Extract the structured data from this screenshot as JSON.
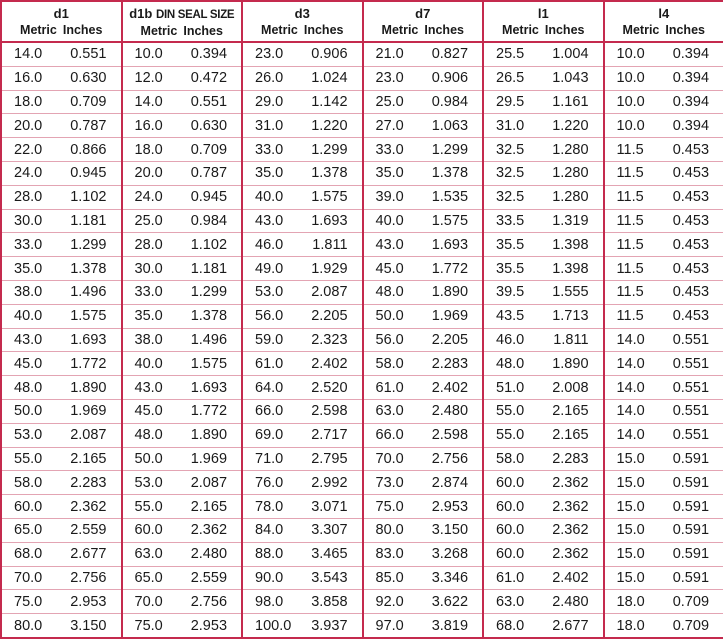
{
  "table": {
    "columns": [
      {
        "label": "d1",
        "note": "",
        "metric": "Metric",
        "inches": "Inches"
      },
      {
        "label": "d1b",
        "note": "DIN SEAL SIZE",
        "metric": "Metric",
        "inches": "Inches"
      },
      {
        "label": "d3",
        "note": "",
        "metric": "Metric",
        "inches": "Inches"
      },
      {
        "label": "d7",
        "note": "",
        "metric": "Metric",
        "inches": "Inches"
      },
      {
        "label": "l1",
        "note": "",
        "metric": "Metric",
        "inches": "Inches"
      },
      {
        "label": "l4",
        "note": "",
        "metric": "Metric",
        "inches": "Inches"
      }
    ],
    "rows": [
      [
        "14.0",
        "0.551",
        "10.0",
        "0.394",
        "23.0",
        "0.906",
        "21.0",
        "0.827",
        "25.5",
        "1.004",
        "10.0",
        "0.394"
      ],
      [
        "16.0",
        "0.630",
        "12.0",
        "0.472",
        "26.0",
        "1.024",
        "23.0",
        "0.906",
        "26.5",
        "1.043",
        "10.0",
        "0.394"
      ],
      [
        "18.0",
        "0.709",
        "14.0",
        "0.551",
        "29.0",
        "1.142",
        "25.0",
        "0.984",
        "29.5",
        "1.161",
        "10.0",
        "0.394"
      ],
      [
        "20.0",
        "0.787",
        "16.0",
        "0.630",
        "31.0",
        "1.220",
        "27.0",
        "1.063",
        "31.0",
        "1.220",
        "10.0",
        "0.394"
      ],
      [
        "22.0",
        "0.866",
        "18.0",
        "0.709",
        "33.0",
        "1.299",
        "33.0",
        "1.299",
        "32.5",
        "1.280",
        "11.5",
        "0.453"
      ],
      [
        "24.0",
        "0.945",
        "20.0",
        "0.787",
        "35.0",
        "1.378",
        "35.0",
        "1.378",
        "32.5",
        "1.280",
        "11.5",
        "0.453"
      ],
      [
        "28.0",
        "1.102",
        "24.0",
        "0.945",
        "40.0",
        "1.575",
        "39.0",
        "1.535",
        "32.5",
        "1.280",
        "11.5",
        "0.453"
      ],
      [
        "30.0",
        "1.181",
        "25.0",
        "0.984",
        "43.0",
        "1.693",
        "40.0",
        "1.575",
        "33.5",
        "1.319",
        "11.5",
        "0.453"
      ],
      [
        "33.0",
        "1.299",
        "28.0",
        "1.102",
        "46.0",
        "1.811",
        "43.0",
        "1.693",
        "35.5",
        "1.398",
        "11.5",
        "0.453"
      ],
      [
        "35.0",
        "1.378",
        "30.0",
        "1.181",
        "49.0",
        "1.929",
        "45.0",
        "1.772",
        "35.5",
        "1.398",
        "11.5",
        "0.453"
      ],
      [
        "38.0",
        "1.496",
        "33.0",
        "1.299",
        "53.0",
        "2.087",
        "48.0",
        "1.890",
        "39.5",
        "1.555",
        "11.5",
        "0.453"
      ],
      [
        "40.0",
        "1.575",
        "35.0",
        "1.378",
        "56.0",
        "2.205",
        "50.0",
        "1.969",
        "43.5",
        "1.713",
        "11.5",
        "0.453"
      ],
      [
        "43.0",
        "1.693",
        "38.0",
        "1.496",
        "59.0",
        "2.323",
        "56.0",
        "2.205",
        "46.0",
        "1.811",
        "14.0",
        "0.551"
      ],
      [
        "45.0",
        "1.772",
        "40.0",
        "1.575",
        "61.0",
        "2.402",
        "58.0",
        "2.283",
        "48.0",
        "1.890",
        "14.0",
        "0.551"
      ],
      [
        "48.0",
        "1.890",
        "43.0",
        "1.693",
        "64.0",
        "2.520",
        "61.0",
        "2.402",
        "51.0",
        "2.008",
        "14.0",
        "0.551"
      ],
      [
        "50.0",
        "1.969",
        "45.0",
        "1.772",
        "66.0",
        "2.598",
        "63.0",
        "2.480",
        "55.0",
        "2.165",
        "14.0",
        "0.551"
      ],
      [
        "53.0",
        "2.087",
        "48.0",
        "1.890",
        "69.0",
        "2.717",
        "66.0",
        "2.598",
        "55.0",
        "2.165",
        "14.0",
        "0.551"
      ],
      [
        "55.0",
        "2.165",
        "50.0",
        "1.969",
        "71.0",
        "2.795",
        "70.0",
        "2.756",
        "58.0",
        "2.283",
        "15.0",
        "0.591"
      ],
      [
        "58.0",
        "2.283",
        "53.0",
        "2.087",
        "76.0",
        "2.992",
        "73.0",
        "2.874",
        "60.0",
        "2.362",
        "15.0",
        "0.591"
      ],
      [
        "60.0",
        "2.362",
        "55.0",
        "2.165",
        "78.0",
        "3.071",
        "75.0",
        "2.953",
        "60.0",
        "2.362",
        "15.0",
        "0.591"
      ],
      [
        "65.0",
        "2.559",
        "60.0",
        "2.362",
        "84.0",
        "3.307",
        "80.0",
        "3.150",
        "60.0",
        "2.362",
        "15.0",
        "0.591"
      ],
      [
        "68.0",
        "2.677",
        "63.0",
        "2.480",
        "88.0",
        "3.465",
        "83.0",
        "3.268",
        "60.0",
        "2.362",
        "15.0",
        "0.591"
      ],
      [
        "70.0",
        "2.756",
        "65.0",
        "2.559",
        "90.0",
        "3.543",
        "85.0",
        "3.346",
        "61.0",
        "2.402",
        "15.0",
        "0.591"
      ],
      [
        "75.0",
        "2.953",
        "70.0",
        "2.756",
        "98.0",
        "3.858",
        "92.0",
        "3.622",
        "63.0",
        "2.480",
        "18.0",
        "0.709"
      ],
      [
        "80.0",
        "3.150",
        "75.0",
        "2.953",
        "100.0",
        "3.937",
        "97.0",
        "3.819",
        "68.0",
        "2.677",
        "18.0",
        "0.709"
      ]
    ]
  },
  "colors": {
    "border": "#c42a4e",
    "row_line": "#e3a4b3"
  }
}
